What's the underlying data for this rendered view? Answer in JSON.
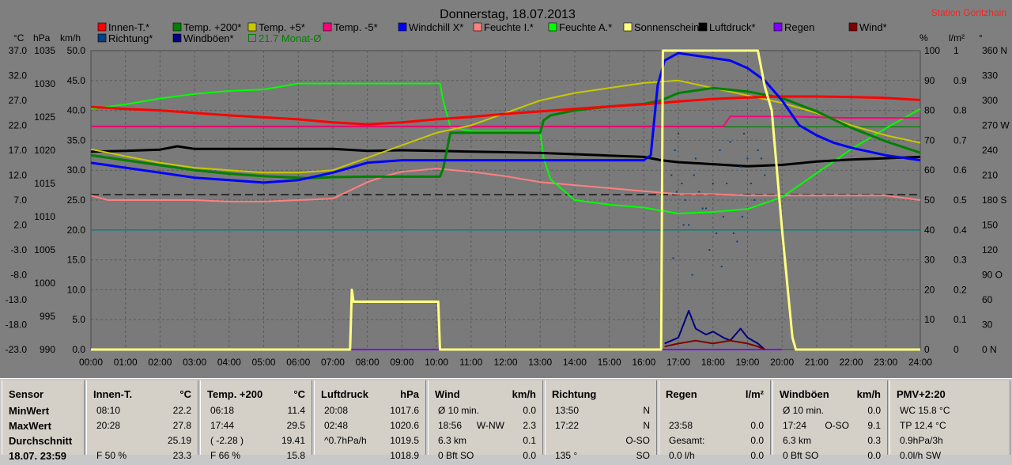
{
  "chart_data": {
    "type": "line",
    "title": "Donnerstag, 18.07.2013",
    "station": "Station Göritzhain",
    "x_ticks": [
      "00:00",
      "01:00",
      "02:00",
      "03:00",
      "04:00",
      "05:00",
      "06:00",
      "07:00",
      "08:00",
      "09:00",
      "10:00",
      "11:00",
      "12:00",
      "13:00",
      "14:00",
      "15:00",
      "16:00",
      "17:00",
      "18:00",
      "19:00",
      "20:00",
      "21:00",
      "22:00",
      "23:00",
      "24:00"
    ],
    "axes": {
      "c": {
        "unit": "°C",
        "ticks": [
          "37.0",
          "32.0",
          "27.0",
          "22.0",
          "17.0",
          "12.0",
          "7.0",
          "2.0",
          "-3.0",
          "-8.0",
          "-13.0",
          "-18.0",
          "-23.0"
        ],
        "range": [
          -23,
          37
        ]
      },
      "hpa": {
        "unit": "hPa",
        "ticks": [
          "1035",
          "1030",
          "1025",
          "1020",
          "1015",
          "1010",
          "1005",
          "1000",
          "995",
          "990"
        ],
        "range": [
          990,
          1035
        ]
      },
      "kmh": {
        "unit": "km/h",
        "ticks": [
          "50.0",
          "45.0",
          "40.0",
          "35.0",
          "30.0",
          "25.0",
          "20.0",
          "15.0",
          "10.0",
          "5.0",
          "0.0"
        ],
        "range": [
          0,
          50
        ]
      },
      "pct": {
        "unit": "%",
        "ticks": [
          "100",
          "90",
          "80",
          "70",
          "60",
          "50",
          "40",
          "30",
          "20",
          "10",
          "0"
        ],
        "range": [
          0,
          100
        ]
      },
      "lm2": {
        "unit": "l/m²",
        "ticks": [
          "1",
          "0.9",
          "0.8",
          "0.7",
          "0.6",
          "0.5",
          "0.4",
          "0.3",
          "0.2",
          "0.1",
          "0"
        ],
        "range": [
          0,
          1
        ]
      },
      "deg": {
        "unit": "°",
        "ticks": [
          "360 N",
          "330",
          "300",
          "270 W",
          "240",
          "210",
          "180 S",
          "150",
          "120",
          "90 O",
          "60",
          "30",
          "0 N"
        ],
        "range": [
          0,
          360
        ]
      }
    },
    "legend": [
      {
        "name": "Innen-T.*",
        "color": "#ff0000"
      },
      {
        "name": "Temp. +200*",
        "color": "#008000"
      },
      {
        "name": "Temp. +5*",
        "color": "#c8c800"
      },
      {
        "name": "Temp. -5*",
        "color": "#ff0080"
      },
      {
        "name": "Windchill X*",
        "color": "#0000ff"
      },
      {
        "name": "Feuchte I.*",
        "color": "#ff8080"
      },
      {
        "name": "Feuchte A.*",
        "color": "#00ff00"
      },
      {
        "name": "Sonnenschein",
        "color": "#ffff80"
      },
      {
        "name": "Luftdruck*",
        "color": "#000000"
      },
      {
        "name": "Regen",
        "color": "#8000ff"
      },
      {
        "name": "Wind*",
        "color": "#800000"
      },
      {
        "name": "Richtung*",
        "color": "#004080"
      },
      {
        "name": "Windböen*",
        "color": "#000080"
      },
      {
        "name": "21.7 Monat-Ø",
        "color": "#008000"
      }
    ],
    "series": [
      {
        "name": "Innen-T.*",
        "axis": "c",
        "color": "#ff0000",
        "width": 3,
        "x": [
          0,
          1,
          2,
          3,
          4,
          5,
          6,
          7,
          8,
          9,
          10,
          11,
          12,
          13,
          14,
          15,
          16,
          17,
          18,
          19,
          20,
          21,
          22,
          23,
          24
        ],
        "y": [
          25.7,
          25.3,
          25.0,
          24.5,
          24.0,
          23.6,
          23.2,
          22.6,
          22.2,
          22.6,
          23.2,
          23.7,
          24.3,
          24.8,
          25.3,
          25.8,
          26.2,
          26.8,
          27.3,
          27.6,
          27.8,
          27.8,
          27.7,
          27.5,
          27.1
        ]
      },
      {
        "name": "Temp. +200*",
        "axis": "c",
        "color": "#008000",
        "width": 3,
        "x": [
          0,
          1,
          2,
          3,
          4,
          5,
          6,
          6.3,
          7,
          8,
          9,
          10.1,
          10.2,
          10.4,
          11,
          12,
          13,
          13.1,
          13.3,
          14,
          15,
          16,
          16.5,
          17,
          18,
          19,
          20,
          21,
          22,
          23,
          24
        ],
        "y": [
          16.0,
          15.0,
          14.0,
          13.0,
          12.3,
          11.8,
          11.5,
          11.4,
          11.6,
          11.7,
          11.7,
          11.7,
          13.5,
          20.5,
          20.5,
          20.5,
          20.5,
          23.0,
          24.0,
          25.0,
          25.8,
          26.3,
          27.0,
          28.5,
          29.5,
          28.8,
          27.5,
          24.8,
          21.5,
          18.8,
          16.5
        ]
      },
      {
        "name": "Temp. +5*",
        "axis": "c",
        "color": "#c8c800",
        "width": 2,
        "x": [
          0,
          1,
          2,
          3,
          4,
          5,
          6,
          7,
          8,
          9,
          10,
          11,
          12,
          13,
          14,
          15,
          16,
          17,
          18,
          19,
          20,
          21,
          22,
          23,
          24
        ],
        "y": [
          17.2,
          15.8,
          14.5,
          13.5,
          13.0,
          12.5,
          12.5,
          13.0,
          15.5,
          18.0,
          20.5,
          22.0,
          24.5,
          27.0,
          28.5,
          29.5,
          30.5,
          31.0,
          29.5,
          28.0,
          26.5,
          24.5,
          22.0,
          20.0,
          18.5
        ]
      },
      {
        "name": "Temp. -5*",
        "axis": "c",
        "color": "#ff0080",
        "width": 2,
        "x": [
          0,
          18.3,
          18.5,
          20,
          22,
          24
        ],
        "y": [
          21.8,
          21.8,
          23.8,
          23.8,
          23.5,
          23.5
        ]
      },
      {
        "name": "Windchill X*",
        "axis": "c",
        "color": "#0000ff",
        "width": 3,
        "x": [
          0,
          1,
          2,
          3,
          4,
          5,
          6,
          7,
          8,
          9,
          10,
          11,
          12,
          13,
          14,
          15,
          16,
          16.2,
          16.4,
          16.6,
          17,
          17.5,
          18,
          18.5,
          19,
          19.5,
          20,
          20.5,
          21,
          21.5,
          22,
          23,
          24
        ],
        "y": [
          14.5,
          13.5,
          12.5,
          11.5,
          11.0,
          10.5,
          11.0,
          12.5,
          14.5,
          15.0,
          15.0,
          15.0,
          15.0,
          15.0,
          15.0,
          15.0,
          15.0,
          16.0,
          30.0,
          35.0,
          36.5,
          36.0,
          35.5,
          35.0,
          33.5,
          31.0,
          27.0,
          22.0,
          20.0,
          18.5,
          17.5,
          16.0,
          15.0
        ]
      },
      {
        "name": "Feuchte I.*",
        "axis": "pct",
        "color": "#ff8080",
        "width": 2,
        "x": [
          0,
          0.5,
          1,
          2,
          3,
          4,
          5,
          6,
          7,
          8,
          8.5,
          9,
          10,
          11,
          12,
          13,
          14,
          15,
          16,
          17,
          18,
          19,
          20,
          21,
          22,
          23,
          24
        ],
        "y": [
          51.5,
          50.0,
          50.0,
          50.0,
          50.0,
          49.5,
          49.5,
          50.0,
          50.5,
          56.0,
          58.0,
          59.5,
          60.5,
          59.5,
          58.0,
          56.0,
          55.0,
          54.0,
          53.0,
          52.0,
          52.0,
          51.5,
          51.5,
          51.5,
          51.5,
          51.5,
          50.0
        ]
      },
      {
        "name": "Feuchte A.*",
        "axis": "pct",
        "color": "#00ff00",
        "width": 2,
        "x": [
          0,
          1,
          2,
          3,
          4,
          5,
          6,
          7,
          8,
          9,
          10,
          10.1,
          10.2,
          10.4,
          11,
          12,
          13,
          13.1,
          13.3,
          14,
          15,
          16,
          17,
          18,
          19,
          20,
          21,
          22,
          23,
          24
        ],
        "y": [
          80.5,
          82.0,
          84.0,
          85.5,
          86.5,
          87.0,
          89.0,
          89.0,
          89.0,
          89.0,
          89.0,
          89.0,
          83.0,
          74.5,
          73.0,
          73.0,
          73.0,
          64.0,
          57.0,
          50.0,
          48.5,
          47.5,
          45.5,
          46.0,
          47.0,
          51.0,
          59.0,
          67.0,
          74.0,
          80.5
        ]
      },
      {
        "name": "Sonnenschein",
        "axis": "kmh",
        "color": "#ffff80",
        "width": 3,
        "x": [
          0,
          7.5,
          7.55,
          7.6,
          8,
          9,
          9.5,
          10,
          10.05,
          10.1,
          16.5,
          16.55,
          17,
          18,
          19,
          19.3,
          19.5,
          19.7,
          20.0,
          20.2,
          20.3,
          20.4,
          24
        ],
        "y": [
          0,
          0,
          10,
          8,
          8,
          8,
          8,
          8,
          8,
          0,
          0,
          50,
          50,
          50,
          50,
          50,
          44,
          40,
          20,
          8,
          2,
          0,
          0
        ]
      },
      {
        "name": "Luftdruck*",
        "axis": "hpa",
        "color": "#000000",
        "width": 3,
        "x": [
          0,
          1,
          2,
          2.5,
          3,
          4,
          5,
          6,
          7,
          8,
          9,
          10,
          11,
          12,
          13,
          14,
          15,
          16,
          16.5,
          17,
          18,
          19,
          20,
          21,
          22,
          23,
          24
        ],
        "y": [
          1019.8,
          1019.9,
          1020.1,
          1020.6,
          1020.2,
          1020.2,
          1020.2,
          1020.2,
          1020.2,
          1019.9,
          1020.0,
          1019.9,
          1019.8,
          1019.7,
          1019.6,
          1019.4,
          1019.2,
          1019.0,
          1018.5,
          1018.2,
          1017.9,
          1017.6,
          1017.8,
          1018.3,
          1018.6,
          1018.8,
          1019.0
        ]
      },
      {
        "name": "Regen",
        "axis": "lm2",
        "color": "#8000ff",
        "width": 2,
        "x": [
          7.5,
          10.0,
          16.5,
          20.0
        ],
        "y": [
          0,
          0,
          0,
          0
        ]
      },
      {
        "name": "Wind*",
        "axis": "kmh",
        "color": "#800000",
        "width": 2,
        "x": [
          16.6,
          17,
          17.5,
          18,
          18.5,
          19,
          19.3,
          19.5
        ],
        "y": [
          0.5,
          1.0,
          1.5,
          1.0,
          1.5,
          1.0,
          0.5,
          0
        ]
      },
      {
        "name": "Windböen*",
        "axis": "kmh",
        "color": "#000080",
        "width": 2,
        "x": [
          16.6,
          16.8,
          17,
          17.3,
          17.5,
          17.8,
          18,
          18.3,
          18.5,
          18.8,
          19,
          19.3,
          19.5
        ],
        "y": [
          1.0,
          1.5,
          2.0,
          6.5,
          3.5,
          2.5,
          3.0,
          2.0,
          1.5,
          3.5,
          2.0,
          1.0,
          0
        ]
      }
    ],
    "reference_lines": [
      {
        "name": "21.7 Monat-Ø",
        "axis": "c",
        "value": 21.7,
        "color": "#008000"
      },
      {
        "name": "Luftdruck-Referenz",
        "axis": "hpa",
        "value": 1013.3,
        "color": "#000000",
        "dashed": true
      },
      {
        "name": "Temp-Referenz",
        "axis": "c",
        "value": 1.0,
        "color": "#008080"
      }
    ],
    "direction_points": {
      "axis": "deg",
      "x": [
        16.8,
        16.9,
        17.0,
        17.1,
        17.2,
        17.3,
        17.5,
        17.6,
        17.8,
        17.9,
        18.0,
        18.2,
        18.3,
        18.5,
        18.6,
        18.8,
        18.9,
        19.0,
        19.1,
        19.2,
        19.3,
        19.5,
        16.85,
        17.4,
        17.7,
        18.1,
        18.4,
        18.7,
        19.4,
        16.95,
        17.15,
        17.45,
        18.25,
        18.85
      ],
      "y": [
        210,
        240,
        260,
        200,
        180,
        150,
        230,
        190,
        170,
        120,
        200,
        240,
        160,
        250,
        140,
        220,
        260,
        230,
        200,
        180,
        240,
        210,
        110,
        90,
        170,
        140,
        200,
        130,
        230,
        190,
        150,
        210,
        100,
        160
      ]
    }
  },
  "stats": {
    "columns": [
      {
        "title": "Sensor",
        "unit": "",
        "rows": [
          [
            "MinWert",
            "",
            ""
          ],
          [
            "MaxWert",
            "",
            ""
          ],
          [
            "Durchschnitt",
            "",
            ""
          ],
          [
            "18.07. 23:59",
            "",
            ""
          ]
        ]
      },
      {
        "title": "Innen-T.",
        "unit": "°C",
        "rows": [
          [
            "08:10",
            "",
            "22.2"
          ],
          [
            "20:28",
            "",
            "27.8"
          ],
          [
            "",
            "",
            "25.19"
          ],
          [
            "F 50 %",
            "",
            "23.3"
          ]
        ]
      },
      {
        "title": "Temp. +200",
        "unit": "°C",
        "rows": [
          [
            "06:18",
            "",
            "11.4"
          ],
          [
            "17:44",
            "",
            "29.5"
          ],
          [
            "( -2.28 )",
            "",
            "19.41"
          ],
          [
            "F 66 %",
            "",
            "15.8"
          ]
        ]
      },
      {
        "title": "Luftdruck",
        "unit": "hPa",
        "rows": [
          [
            "20:08",
            "",
            "1017.6"
          ],
          [
            "02:48",
            "",
            "1020.6"
          ],
          [
            "^0.7hPa/h",
            "",
            "1019.5"
          ],
          [
            "",
            "",
            "1018.9"
          ]
        ]
      },
      {
        "title": "Wind",
        "unit": "km/h",
        "rows": [
          [
            "Ø 10 min.",
            "",
            "0.0"
          ],
          [
            "18:56",
            "W-NW",
            "2.3"
          ],
          [
            "6.3 km",
            "",
            "0.1"
          ],
          [
            "0 Bft SO",
            "",
            "0.0"
          ]
        ]
      },
      {
        "title": "Richtung",
        "unit": "",
        "rows": [
          [
            "13:50",
            "",
            "N"
          ],
          [
            "17:22",
            "",
            "N"
          ],
          [
            "",
            "",
            "O-SO"
          ],
          [
            "135 °",
            "",
            "SO"
          ]
        ]
      },
      {
        "title": "Regen",
        "unit": "l/m²",
        "rows": [
          [
            "",
            "",
            ""
          ],
          [
            "23:58",
            "",
            "0.0"
          ],
          [
            "Gesamt:",
            "",
            "0.0"
          ],
          [
            "0.0 l/h",
            "",
            "0.0"
          ]
        ]
      },
      {
        "title": "Windböen",
        "unit": "km/h",
        "rows": [
          [
            "Ø 10 min.",
            "",
            "0.0"
          ],
          [
            "17:24",
            "O-SO",
            "9.1"
          ],
          [
            "6.3 km",
            "",
            "0.3"
          ],
          [
            "0 Bft SO",
            "",
            "0.0"
          ]
        ]
      },
      {
        "title": "PMV+2:20",
        "unit": "",
        "rows": [
          [
            "WC 15.8 °C",
            "",
            ""
          ],
          [
            "TP 12.4 °C",
            "",
            ""
          ],
          [
            "0.9hPa/3h",
            "",
            ""
          ],
          [
            "0.0l/h SW",
            "",
            ""
          ]
        ]
      }
    ]
  }
}
